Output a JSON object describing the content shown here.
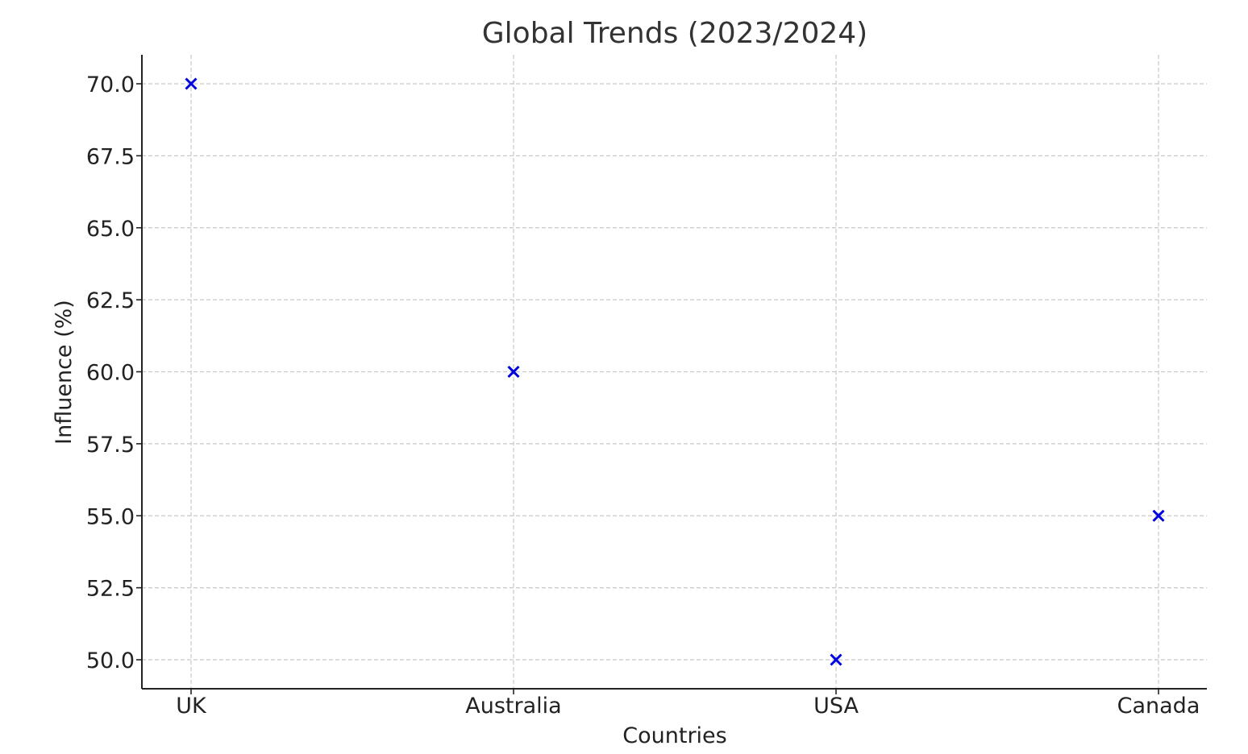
{
  "chart_data": {
    "type": "scatter",
    "title": "Global Trends (2023/2024)",
    "xlabel": "Countries",
    "ylabel": "Influence (%)",
    "categories": [
      "UK",
      "Australia",
      "USA",
      "Canada"
    ],
    "values": [
      70.0,
      60.0,
      50.0,
      55.0
    ],
    "ylim": [
      49.0,
      71.0
    ],
    "yticks": [
      50.0,
      52.5,
      55.0,
      57.5,
      60.0,
      62.5,
      65.0,
      67.5,
      70.0
    ],
    "ytick_labels": [
      "50.0",
      "52.5",
      "55.0",
      "57.5",
      "60.0",
      "62.5",
      "65.0",
      "67.5",
      "70.0"
    ],
    "marker": "x",
    "marker_color": "#0000dd",
    "grid": true,
    "grid_style": "dashed"
  }
}
